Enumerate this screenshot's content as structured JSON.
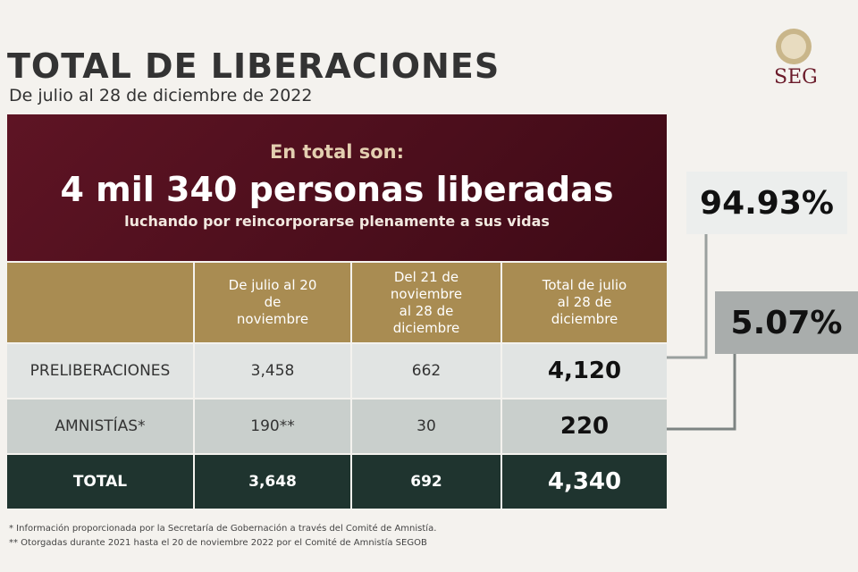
{
  "header": {
    "title": "TOTAL DE LIBERACIONES",
    "subtitle": "De julio al 28 de diciembre de 2022",
    "logo": "SEG"
  },
  "banner": {
    "intro": "En total son:",
    "headline": "4 mil 340 personas liberadas",
    "tagline": "luchando por reincorporarse plenamente a sus vidas"
  },
  "table": {
    "columns": [
      "De julio al 20 de noviembre",
      "Del 21 de noviembre al 28 de diciembre",
      "Total de julio al 28 de diciembre"
    ],
    "rows": [
      [
        "PRELIBERACIONES",
        "3,458",
        "662",
        "4,120"
      ],
      [
        "AMNISTÍAS*",
        "190**",
        "30",
        "220"
      ],
      [
        "TOTAL",
        "3,648",
        "692",
        "4,340"
      ]
    ]
  },
  "callouts": [
    "94.93%",
    "5.07%"
  ],
  "footnotes": [
    "* Información proporcionada por la Secretaría de Gobernación a través del Comité de Amnistía.",
    "** Otorgadas durante 2021 hasta el 20 de noviembre 2022 por el Comité de Amnistía SEGOB"
  ]
}
